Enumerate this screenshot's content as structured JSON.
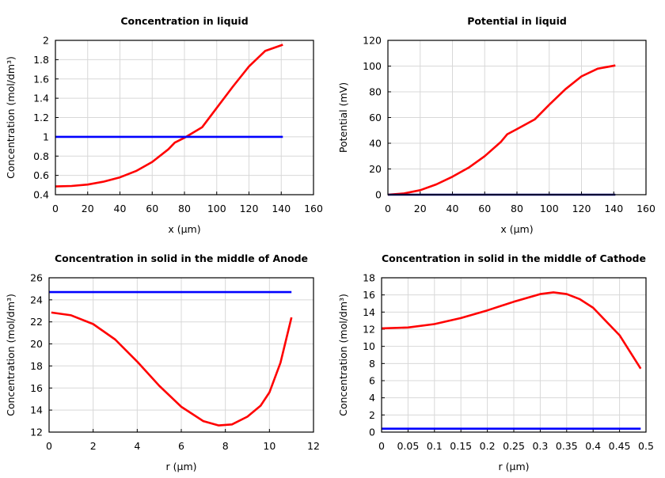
{
  "chart_data": [
    {
      "type": "line",
      "title": "Concentration in liquid",
      "xlabel": "x (µm)",
      "ylabel": "Concentration (mol/dm³)",
      "xlim": [
        0,
        160
      ],
      "ylim": [
        0.4,
        2
      ],
      "xticks": [
        "0",
        "20",
        "40",
        "60",
        "80",
        "100",
        "120",
        "140",
        "160"
      ],
      "yticks": [
        "0.4",
        "0.6",
        "0.8",
        "1",
        "1.2",
        "1.4",
        "1.6",
        "1.8",
        "2"
      ],
      "grid": true,
      "series": [
        {
          "color": "#ff0000",
          "x": [
            0,
            10,
            20,
            30,
            40,
            50,
            60,
            70,
            74,
            80,
            91,
            100,
            110,
            120,
            130,
            141
          ],
          "y": [
            0.485,
            0.49,
            0.505,
            0.535,
            0.58,
            0.645,
            0.74,
            0.87,
            0.94,
            0.99,
            1.1,
            1.3,
            1.52,
            1.73,
            1.89,
            1.955
          ]
        },
        {
          "color": "#0000ff",
          "x": [
            0,
            141
          ],
          "y": [
            1,
            1
          ]
        }
      ]
    },
    {
      "type": "line",
      "title": "Potential in liquid",
      "xlabel": "x (µm)",
      "ylabel": "Potential (mV)",
      "xlim": [
        0,
        160
      ],
      "ylim": [
        0,
        120
      ],
      "xticks": [
        "0",
        "20",
        "40",
        "60",
        "80",
        "100",
        "120",
        "140",
        "160"
      ],
      "yticks": [
        "0",
        "20",
        "40",
        "60",
        "80",
        "100",
        "120"
      ],
      "grid": true,
      "series": [
        {
          "color": "#ff0000",
          "x": [
            0,
            10,
            20,
            30,
            40,
            50,
            60,
            70,
            74,
            80,
            91,
            100,
            110,
            120,
            130,
            141
          ],
          "y": [
            0,
            1,
            3.5,
            8,
            14,
            21,
            30,
            41,
            47,
            51,
            58.5,
            70,
            82,
            92,
            98,
            100.5
          ]
        },
        {
          "color": "#000080",
          "x": [
            0,
            141
          ],
          "y": [
            0,
            0
          ]
        }
      ]
    },
    {
      "type": "line",
      "title": "Concentration in solid in the middle of Anode",
      "xlabel": "r (µm)",
      "ylabel": "Concentration (mol/dm³)",
      "xlim": [
        0,
        12
      ],
      "ylim": [
        12,
        26
      ],
      "xticks": [
        "0",
        "2",
        "4",
        "6",
        "8",
        "10",
        "12"
      ],
      "yticks": [
        "12",
        "14",
        "16",
        "18",
        "20",
        "22",
        "24",
        "26"
      ],
      "grid": true,
      "series": [
        {
          "color": "#ff0000",
          "x": [
            0.1,
            1,
            2,
            3,
            4,
            5,
            6,
            7,
            7.7,
            8.3,
            9,
            9.6,
            10,
            10.5,
            11
          ],
          "y": [
            22.85,
            22.6,
            21.8,
            20.4,
            18.4,
            16.2,
            14.3,
            13.0,
            12.6,
            12.7,
            13.4,
            14.4,
            15.6,
            18.3,
            22.4
          ]
        },
        {
          "color": "#0000ff",
          "x": [
            0,
            11
          ],
          "y": [
            24.7,
            24.7
          ]
        }
      ]
    },
    {
      "type": "line",
      "title": "Concentration in solid in the middle of Cathode",
      "xlabel": "r (µm)",
      "ylabel": "Concentration (mol/dm³)",
      "xlim": [
        0,
        0.5
      ],
      "ylim": [
        0,
        18
      ],
      "xticks": [
        "0",
        "0.05",
        "0.1",
        "0.15",
        "0.2",
        "0.25",
        "0.3",
        "0.35",
        "0.4",
        "0.45",
        "0.5"
      ],
      "yticks": [
        "0",
        "2",
        "4",
        "6",
        "8",
        "10",
        "12",
        "14",
        "16",
        "18"
      ],
      "grid": true,
      "series": [
        {
          "color": "#ff0000",
          "x": [
            0,
            0.05,
            0.1,
            0.15,
            0.2,
            0.25,
            0.3,
            0.325,
            0.35,
            0.375,
            0.4,
            0.45,
            0.49
          ],
          "y": [
            12.1,
            12.2,
            12.6,
            13.3,
            14.2,
            15.2,
            16.1,
            16.3,
            16.1,
            15.5,
            14.5,
            11.3,
            7.4
          ]
        },
        {
          "color": "#0000ff",
          "x": [
            0,
            0.49
          ],
          "y": [
            0.4,
            0.4
          ]
        }
      ]
    }
  ]
}
